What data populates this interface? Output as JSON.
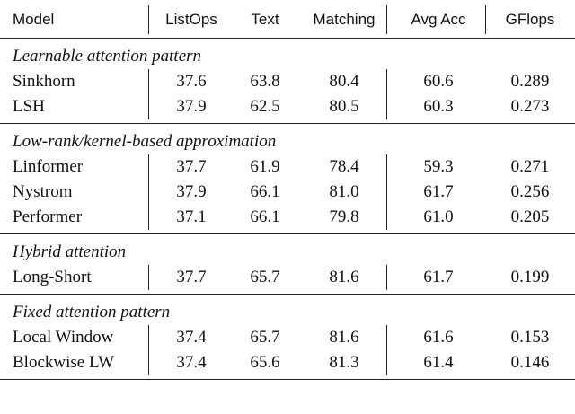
{
  "table": {
    "header": [
      "Model",
      "ListOps",
      "Text",
      "Matching",
      "Avg Acc",
      "GFlops"
    ],
    "sections": [
      {
        "title": "Learnable attention pattern",
        "rows": [
          [
            "Sinkhorn",
            "37.6",
            "63.8",
            "80.4",
            "60.6",
            "0.289"
          ],
          [
            "LSH",
            "37.9",
            "62.5",
            "80.5",
            "60.3",
            "0.273"
          ]
        ]
      },
      {
        "title": "Low-rank/kernel-based approximation",
        "rows": [
          [
            "Linformer",
            "37.7",
            "61.9",
            "78.4",
            "59.3",
            "0.271"
          ],
          [
            "Nystrom",
            "37.9",
            "66.1",
            "81.0",
            "61.7",
            "0.256"
          ],
          [
            "Performer",
            "37.1",
            "66.1",
            "79.8",
            "61.0",
            "0.205"
          ]
        ]
      },
      {
        "title": "Hybrid attention",
        "rows": [
          [
            "Long-Short",
            "37.7",
            "65.7",
            "81.6",
            "61.7",
            "0.199"
          ]
        ]
      },
      {
        "title": "Fixed attention pattern",
        "rows": [
          [
            "Local Window",
            "37.4",
            "65.7",
            "81.6",
            "61.6",
            "0.153"
          ],
          [
            "Blockwise LW",
            "37.4",
            "65.6",
            "81.3",
            "61.4",
            "0.146"
          ]
        ]
      }
    ]
  }
}
